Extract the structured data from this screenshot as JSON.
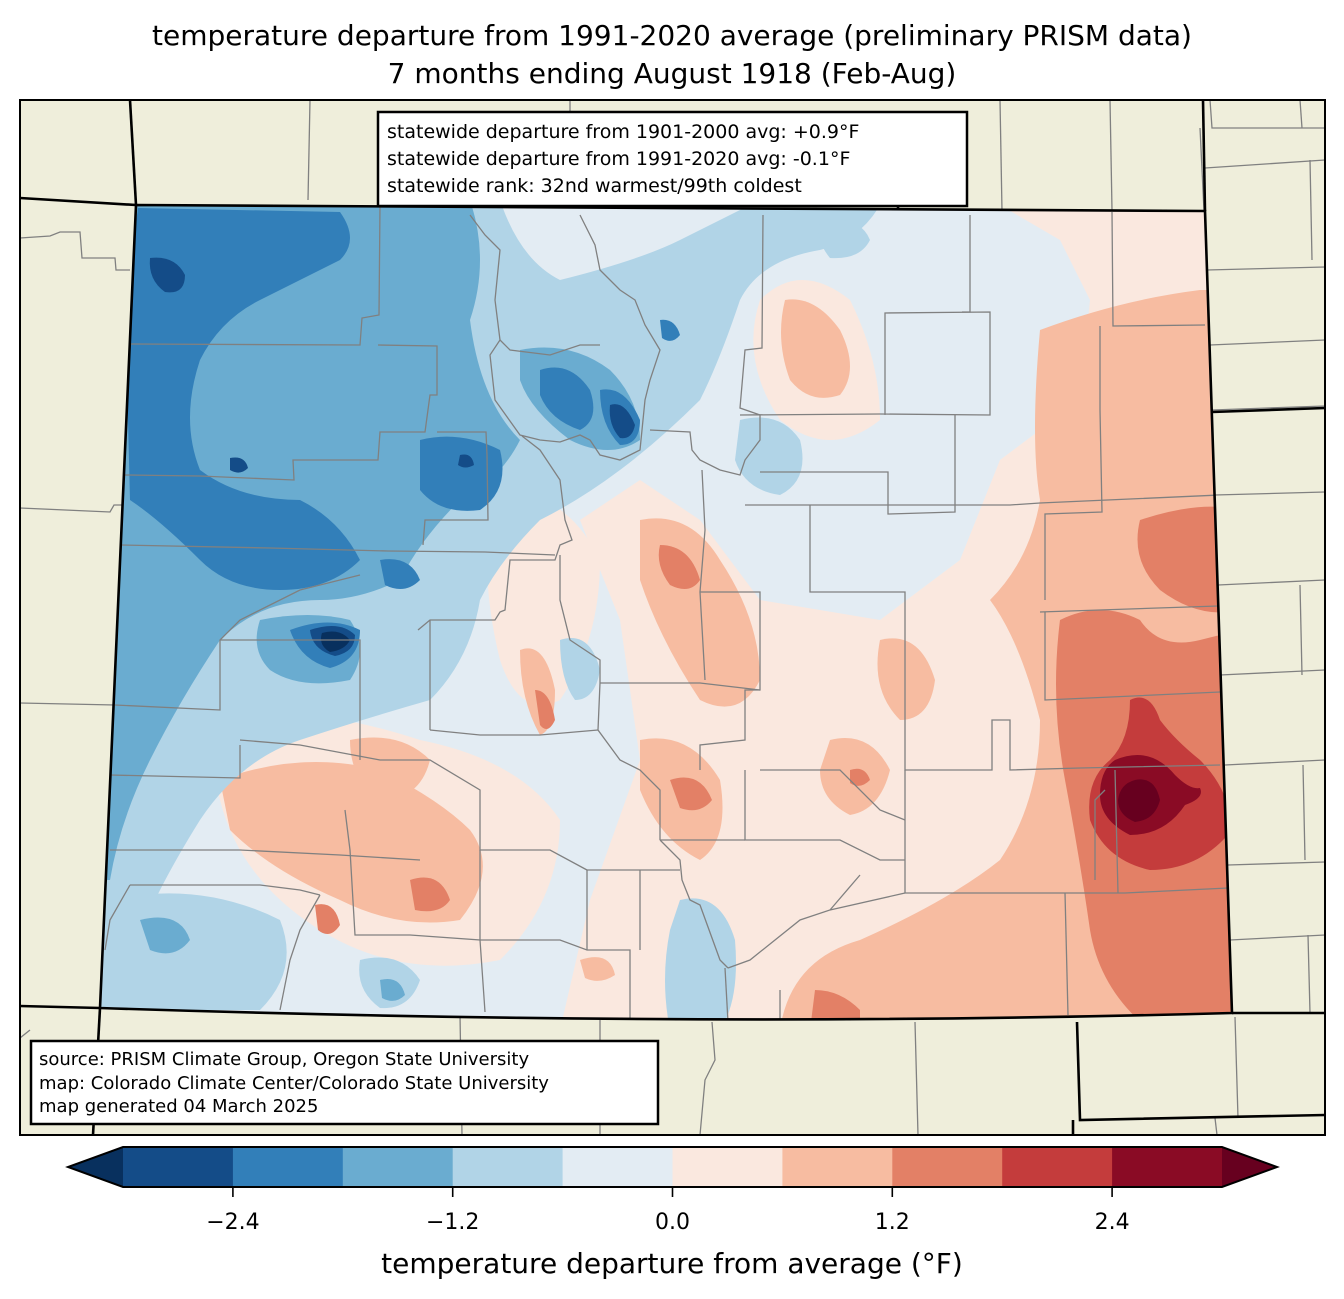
{
  "title": {
    "line1": "temperature departure from 1991-2020 average (preliminary PRISM data)",
    "line2": "7 months ending August 1918 (Feb-Aug)"
  },
  "stats_box": {
    "line1": "statewide departure from 1901-2000 avg: +0.9°F",
    "line2": "statewide departure from 1991-2020 avg: -0.1°F",
    "line3": "statewide rank: 32nd warmest/99th coldest"
  },
  "source_box": {
    "line1": "source: PRISM Climate Group, Oregon State University",
    "line2": "map: Colorado Climate Center/Colorado State University",
    "line3": "map generated 04 March 2025"
  },
  "colors": {
    "land_outside": "#efeedb",
    "county_line": "#808080",
    "state_line": "#000000"
  },
  "chart_data": {
    "type": "heatmap",
    "title": "temperature departure from 1991-2020 average (preliminary PRISM data)",
    "subtitle": "7 months ending August 1918 (Feb-Aug)",
    "region": "Colorado",
    "colorbar": {
      "label": "temperature departure from average (°F)",
      "range": [
        -3.0,
        3.0
      ],
      "extend": "both",
      "boundaries": [
        -3.0,
        -2.4,
        -1.8,
        -1.2,
        -0.6,
        0.0,
        0.6,
        1.2,
        1.8,
        2.4,
        3.0
      ],
      "bin_colors": [
        "#144c88",
        "#327fb9",
        "#6aacd0",
        "#b1d4e7",
        "#e3ecf3",
        "#fae8df",
        "#f7bca1",
        "#e38066",
        "#c43c3c",
        "#8a0b25"
      ],
      "under_color": "#08305e",
      "over_color": "#67001f",
      "ticks": [
        -2.4,
        -1.2,
        0.0,
        1.2,
        2.4
      ],
      "tick_labels": [
        "−2.4",
        "−1.2",
        "0.0",
        "1.2",
        "2.4"
      ]
    },
    "pattern": {
      "west": "cooler than average (blue), strongest in northwest",
      "east": "warmer than average (red), strongest in east-southeast"
    }
  }
}
